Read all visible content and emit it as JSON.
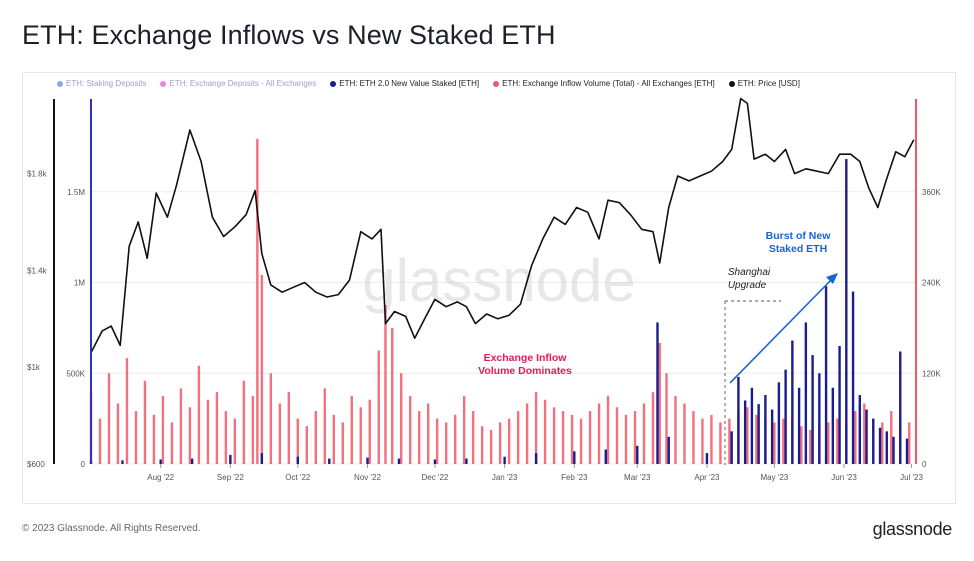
{
  "title": "ETH: Exchange Inflows vs New Staked ETH",
  "legend": [
    {
      "label": "ETH: Staking Deposits",
      "color": "#8fa6e8",
      "active": false
    },
    {
      "label": "ETH: Exchange Deposits - All Exchanges",
      "color": "#e387e0",
      "active": false
    },
    {
      "label": "ETH: ETH 2.0 New Value Staked [ETH]",
      "color": "#1a1e8c",
      "active": true
    },
    {
      "label": "ETH: Exchange Inflow Volume (Total) - All Exchanges [ETH]",
      "color": "#f25767",
      "active": true
    },
    {
      "label": "ETH: Price [USD]",
      "color": "#111111",
      "active": true
    }
  ],
  "watermark": "glassnode",
  "footer": {
    "copyright": "© 2023 Glassnode. All Rights Reserved.",
    "brand": "glassnode"
  },
  "colors": {
    "staked": "#1a1e8c",
    "inflow": "#f25767",
    "price": "#111111",
    "annotation": "#1565d8",
    "highlight": "#e8195a",
    "leftAxisLine": "#2a32b8",
    "rightAxisLine": "#f25767"
  },
  "annotations": {
    "shanghai_line1": "Shanghai",
    "shanghai_line2": "Upgrade",
    "burst_line1": "Burst of New",
    "burst_line2": "Staked ETH",
    "inflow_line1": "Exchange Inflow",
    "inflow_line2": "Volume Dominates"
  },
  "chart_data": {
    "type": "bar",
    "x_start": "2022-07-01",
    "x_end": "2023-07-03",
    "x_ticks": [
      "Aug '22",
      "Sep '22",
      "Oct '22",
      "Nov '22",
      "Dec '22",
      "Jan '23",
      "Feb '23",
      "Mar '23",
      "Apr '23",
      "May '23",
      "Jun '23",
      "Jul '23"
    ],
    "axes": {
      "price": {
        "ticks": [
          "$600",
          "$1k",
          "$1.4k",
          "$1.8k"
        ],
        "range": [
          600,
          2100
        ]
      },
      "staked": {
        "ticks": [
          "0",
          "500K",
          "1M",
          "1.5M"
        ],
        "range": [
          0,
          2000000
        ]
      },
      "inflow": {
        "ticks": [
          "0",
          "120K",
          "240K",
          "360K"
        ],
        "range": [
          0,
          480000
        ]
      }
    },
    "series": [
      {
        "name": "ETH: Exchange Inflow Volume (Total) - All Exchanges [ETH]",
        "type": "bar",
        "axis": "inflow",
        "points": [
          [
            "2022-07-01",
            95000
          ],
          [
            "2022-07-05",
            60000
          ],
          [
            "2022-07-09",
            120000
          ],
          [
            "2022-07-13",
            80000
          ],
          [
            "2022-07-17",
            140000
          ],
          [
            "2022-07-21",
            70000
          ],
          [
            "2022-07-25",
            110000
          ],
          [
            "2022-07-29",
            65000
          ],
          [
            "2022-08-02",
            90000
          ],
          [
            "2022-08-06",
            55000
          ],
          [
            "2022-08-10",
            100000
          ],
          [
            "2022-08-14",
            75000
          ],
          [
            "2022-08-18",
            130000
          ],
          [
            "2022-08-22",
            85000
          ],
          [
            "2022-08-26",
            95000
          ],
          [
            "2022-08-30",
            70000
          ],
          [
            "2022-09-03",
            60000
          ],
          [
            "2022-09-07",
            110000
          ],
          [
            "2022-09-11",
            90000
          ],
          [
            "2022-09-13",
            430000
          ],
          [
            "2022-09-15",
            250000
          ],
          [
            "2022-09-19",
            120000
          ],
          [
            "2022-09-23",
            80000
          ],
          [
            "2022-09-27",
            95000
          ],
          [
            "2022-10-01",
            60000
          ],
          [
            "2022-10-05",
            50000
          ],
          [
            "2022-10-09",
            70000
          ],
          [
            "2022-10-13",
            100000
          ],
          [
            "2022-10-17",
            65000
          ],
          [
            "2022-10-21",
            55000
          ],
          [
            "2022-10-25",
            90000
          ],
          [
            "2022-10-29",
            75000
          ],
          [
            "2022-11-02",
            85000
          ],
          [
            "2022-11-06",
            150000
          ],
          [
            "2022-11-09",
            210000
          ],
          [
            "2022-11-12",
            180000
          ],
          [
            "2022-11-16",
            120000
          ],
          [
            "2022-11-20",
            90000
          ],
          [
            "2022-11-24",
            70000
          ],
          [
            "2022-11-28",
            80000
          ],
          [
            "2022-12-02",
            60000
          ],
          [
            "2022-12-06",
            55000
          ],
          [
            "2022-12-10",
            65000
          ],
          [
            "2022-12-14",
            90000
          ],
          [
            "2022-12-18",
            70000
          ],
          [
            "2022-12-22",
            50000
          ],
          [
            "2022-12-26",
            45000
          ],
          [
            "2022-12-30",
            55000
          ],
          [
            "2023-01-03",
            60000
          ],
          [
            "2023-01-07",
            70000
          ],
          [
            "2023-01-11",
            80000
          ],
          [
            "2023-01-15",
            95000
          ],
          [
            "2023-01-19",
            85000
          ],
          [
            "2023-01-23",
            75000
          ],
          [
            "2023-01-27",
            70000
          ],
          [
            "2023-01-31",
            65000
          ],
          [
            "2023-02-04",
            60000
          ],
          [
            "2023-02-08",
            70000
          ],
          [
            "2023-02-12",
            80000
          ],
          [
            "2023-02-16",
            90000
          ],
          [
            "2023-02-20",
            75000
          ],
          [
            "2023-02-24",
            65000
          ],
          [
            "2023-02-28",
            70000
          ],
          [
            "2023-03-04",
            80000
          ],
          [
            "2023-03-08",
            95000
          ],
          [
            "2023-03-11",
            160000
          ],
          [
            "2023-03-14",
            120000
          ],
          [
            "2023-03-18",
            90000
          ],
          [
            "2023-03-22",
            80000
          ],
          [
            "2023-03-26",
            70000
          ],
          [
            "2023-03-30",
            60000
          ],
          [
            "2023-04-03",
            65000
          ],
          [
            "2023-04-07",
            55000
          ],
          [
            "2023-04-11",
            60000
          ],
          [
            "2023-04-15",
            70000
          ],
          [
            "2023-04-19",
            75000
          ],
          [
            "2023-04-23",
            65000
          ],
          [
            "2023-04-27",
            60000
          ],
          [
            "2023-05-01",
            55000
          ],
          [
            "2023-05-05",
            60000
          ],
          [
            "2023-05-09",
            65000
          ],
          [
            "2023-05-13",
            50000
          ],
          [
            "2023-05-17",
            45000
          ],
          [
            "2023-05-21",
            50000
          ],
          [
            "2023-05-25",
            55000
          ],
          [
            "2023-05-29",
            60000
          ],
          [
            "2023-06-02",
            50000
          ],
          [
            "2023-06-06",
            70000
          ],
          [
            "2023-06-10",
            80000
          ],
          [
            "2023-06-14",
            60000
          ],
          [
            "2023-06-18",
            55000
          ],
          [
            "2023-06-22",
            70000
          ],
          [
            "2023-06-26",
            60000
          ],
          [
            "2023-06-30",
            55000
          ]
        ]
      },
      {
        "name": "ETH: ETH 2.0 New Value Staked [ETH]",
        "type": "bar",
        "axis": "staked",
        "points": [
          [
            "2022-07-01",
            15000
          ],
          [
            "2022-07-15",
            20000
          ],
          [
            "2022-08-01",
            25000
          ],
          [
            "2022-08-15",
            30000
          ],
          [
            "2022-09-01",
            50000
          ],
          [
            "2022-09-15",
            60000
          ],
          [
            "2022-10-01",
            40000
          ],
          [
            "2022-10-15",
            30000
          ],
          [
            "2022-11-01",
            35000
          ],
          [
            "2022-11-15",
            30000
          ],
          [
            "2022-12-01",
            25000
          ],
          [
            "2022-12-15",
            30000
          ],
          [
            "2023-01-01",
            40000
          ],
          [
            "2023-01-15",
            60000
          ],
          [
            "2023-02-01",
            70000
          ],
          [
            "2023-02-15",
            80000
          ],
          [
            "2023-03-01",
            100000
          ],
          [
            "2023-03-10",
            780000
          ],
          [
            "2023-03-15",
            150000
          ],
          [
            "2023-04-01",
            60000
          ],
          [
            "2023-04-12",
            180000
          ],
          [
            "2023-04-15",
            480000
          ],
          [
            "2023-04-18",
            350000
          ],
          [
            "2023-04-21",
            420000
          ],
          [
            "2023-04-24",
            330000
          ],
          [
            "2023-04-27",
            380000
          ],
          [
            "2023-04-30",
            300000
          ],
          [
            "2023-05-03",
            450000
          ],
          [
            "2023-05-06",
            520000
          ],
          [
            "2023-05-09",
            680000
          ],
          [
            "2023-05-12",
            420000
          ],
          [
            "2023-05-15",
            780000
          ],
          [
            "2023-05-18",
            600000
          ],
          [
            "2023-05-21",
            500000
          ],
          [
            "2023-05-24",
            980000
          ],
          [
            "2023-05-27",
            420000
          ],
          [
            "2023-05-30",
            650000
          ],
          [
            "2023-06-02",
            1680000
          ],
          [
            "2023-06-05",
            950000
          ],
          [
            "2023-06-08",
            380000
          ],
          [
            "2023-06-11",
            300000
          ],
          [
            "2023-06-14",
            250000
          ],
          [
            "2023-06-17",
            200000
          ],
          [
            "2023-06-20",
            180000
          ],
          [
            "2023-06-23",
            150000
          ],
          [
            "2023-06-26",
            620000
          ],
          [
            "2023-06-29",
            140000
          ]
        ]
      },
      {
        "name": "ETH: Price [USD]",
        "type": "line",
        "axis": "price",
        "points": [
          [
            "2022-07-01",
            1060
          ],
          [
            "2022-07-06",
            1150
          ],
          [
            "2022-07-10",
            1170
          ],
          [
            "2022-07-14",
            1090
          ],
          [
            "2022-07-18",
            1500
          ],
          [
            "2022-07-22",
            1600
          ],
          [
            "2022-07-26",
            1450
          ],
          [
            "2022-07-30",
            1720
          ],
          [
            "2022-08-04",
            1620
          ],
          [
            "2022-08-08",
            1750
          ],
          [
            "2022-08-14",
            1980
          ],
          [
            "2022-08-19",
            1850
          ],
          [
            "2022-08-24",
            1620
          ],
          [
            "2022-08-29",
            1540
          ],
          [
            "2022-09-03",
            1580
          ],
          [
            "2022-09-08",
            1630
          ],
          [
            "2022-09-12",
            1730
          ],
          [
            "2022-09-15",
            1470
          ],
          [
            "2022-09-19",
            1340
          ],
          [
            "2022-09-24",
            1310
          ],
          [
            "2022-09-29",
            1330
          ],
          [
            "2022-10-04",
            1350
          ],
          [
            "2022-10-09",
            1310
          ],
          [
            "2022-10-14",
            1290
          ],
          [
            "2022-10-19",
            1300
          ],
          [
            "2022-10-24",
            1360
          ],
          [
            "2022-10-29",
            1560
          ],
          [
            "2022-11-03",
            1530
          ],
          [
            "2022-11-07",
            1570
          ],
          [
            "2022-11-09",
            1180
          ],
          [
            "2022-11-13",
            1230
          ],
          [
            "2022-11-18",
            1210
          ],
          [
            "2022-11-22",
            1120
          ],
          [
            "2022-11-27",
            1210
          ],
          [
            "2022-12-01",
            1280
          ],
          [
            "2022-12-06",
            1250
          ],
          [
            "2022-12-11",
            1270
          ],
          [
            "2022-12-15",
            1250
          ],
          [
            "2022-12-19",
            1180
          ],
          [
            "2022-12-24",
            1220
          ],
          [
            "2022-12-29",
            1200
          ],
          [
            "2023-01-03",
            1215
          ],
          [
            "2023-01-08",
            1260
          ],
          [
            "2023-01-13",
            1420
          ],
          [
            "2023-01-18",
            1530
          ],
          [
            "2023-01-23",
            1620
          ],
          [
            "2023-01-28",
            1590
          ],
          [
            "2023-02-02",
            1660
          ],
          [
            "2023-02-07",
            1640
          ],
          [
            "2023-02-12",
            1530
          ],
          [
            "2023-02-16",
            1690
          ],
          [
            "2023-02-21",
            1680
          ],
          [
            "2023-02-26",
            1630
          ],
          [
            "2023-03-03",
            1570
          ],
          [
            "2023-03-08",
            1560
          ],
          [
            "2023-03-11",
            1430
          ],
          [
            "2023-03-15",
            1660
          ],
          [
            "2023-03-19",
            1790
          ],
          [
            "2023-03-24",
            1770
          ],
          [
            "2023-03-29",
            1790
          ],
          [
            "2023-04-03",
            1810
          ],
          [
            "2023-04-08",
            1850
          ],
          [
            "2023-04-12",
            1900
          ],
          [
            "2023-04-16",
            2110
          ],
          [
            "2023-04-19",
            2090
          ],
          [
            "2023-04-22",
            1860
          ],
          [
            "2023-04-27",
            1880
          ],
          [
            "2023-05-01",
            1850
          ],
          [
            "2023-05-06",
            1900
          ],
          [
            "2023-05-10",
            1800
          ],
          [
            "2023-05-15",
            1820
          ],
          [
            "2023-05-20",
            1810
          ],
          [
            "2023-05-25",
            1800
          ],
          [
            "2023-05-30",
            1880
          ],
          [
            "2023-06-04",
            1880
          ],
          [
            "2023-06-08",
            1850
          ],
          [
            "2023-06-12",
            1740
          ],
          [
            "2023-06-16",
            1660
          ],
          [
            "2023-06-20",
            1780
          ],
          [
            "2023-06-24",
            1890
          ],
          [
            "2023-06-28",
            1870
          ],
          [
            "2023-07-02",
            1940
          ]
        ]
      }
    ]
  }
}
